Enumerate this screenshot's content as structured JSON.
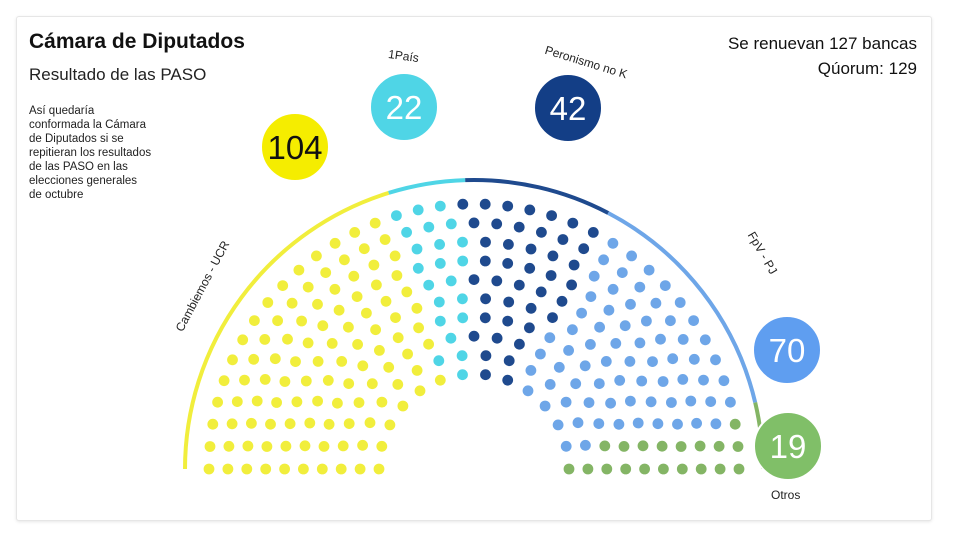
{
  "chart_data": {
    "type": "parliament",
    "title": "Cámara de Diputados",
    "subtitle": "Resultado de las PASO",
    "note_lines": [
      "Así quedaría",
      "conformada la Cámara",
      "de Diputados si se",
      "repitieran los resultados",
      "de las PASO en las",
      "elecciones generales",
      "de octubre"
    ],
    "info": {
      "renewal": "Se renuevan 127 bancas",
      "quorum": "Qúorum: 129"
    },
    "total_seats": 257,
    "parties": [
      {
        "name": "Cambiemos - UCR",
        "seats": 104,
        "seat_label": "104",
        "color": "#f1ee3c",
        "arc_color": "#f1ee3c",
        "bubble_color": "#f5ed00",
        "text_color": "#111111"
      },
      {
        "name": "1País",
        "seats": 22,
        "seat_label": "22",
        "color": "#4fd5e6",
        "arc_color": "#4fd5e6",
        "bubble_color": "#4fd5e6",
        "text_color": "#ffffff"
      },
      {
        "name": "Peronismo no K",
        "seats": 42,
        "seat_label": "42",
        "color": "#1f4a8e",
        "arc_color": "#1f4a8e",
        "bubble_color": "#133e86",
        "text_color": "#ffffff"
      },
      {
        "name": "FpV - PJ",
        "seats": 70,
        "seat_label": "70",
        "color": "#6ea6e8",
        "arc_color": "#6ea6e8",
        "bubble_color": "#5f9ef0",
        "text_color": "#ffffff"
      },
      {
        "name": "Otros",
        "seats": 19,
        "seat_label": "19",
        "color": "#84b565",
        "arc_color": "#84b565",
        "bubble_color": "#80bf68",
        "text_color": "#ffffff"
      }
    ]
  }
}
